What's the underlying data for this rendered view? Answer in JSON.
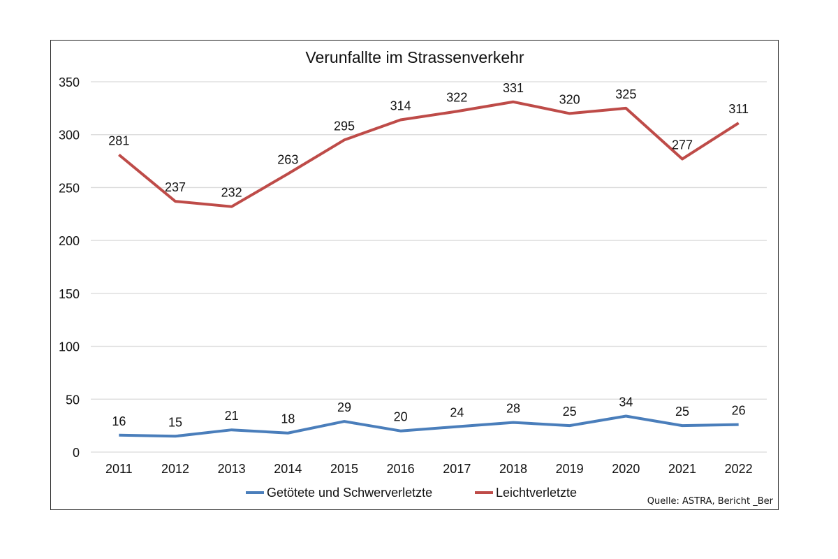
{
  "chart_data": {
    "type": "line",
    "title": "Verunfallte im Strassenverkehr",
    "xlabel": "",
    "ylabel": "",
    "x": [
      "2011",
      "2012",
      "2013",
      "2014",
      "2015",
      "2016",
      "2017",
      "2018",
      "2019",
      "2020",
      "2021",
      "2022"
    ],
    "ylim": [
      0,
      350
    ],
    "yticks": [
      0,
      50,
      100,
      150,
      200,
      250,
      300,
      350
    ],
    "grid": true,
    "legend_position": "bottom",
    "series": [
      {
        "name": "Getötete und Schwerverletzte",
        "color": "#4a7ebb",
        "values": [
          16,
          15,
          21,
          18,
          29,
          20,
          24,
          28,
          25,
          34,
          25,
          26
        ]
      },
      {
        "name": "Leichtverletzte",
        "color": "#be4b48",
        "values": [
          281,
          237,
          232,
          263,
          295,
          314,
          322,
          331,
          320,
          325,
          277,
          311
        ]
      }
    ],
    "annotation": "Quelle:  ASTRA, Bericht _Ber"
  }
}
